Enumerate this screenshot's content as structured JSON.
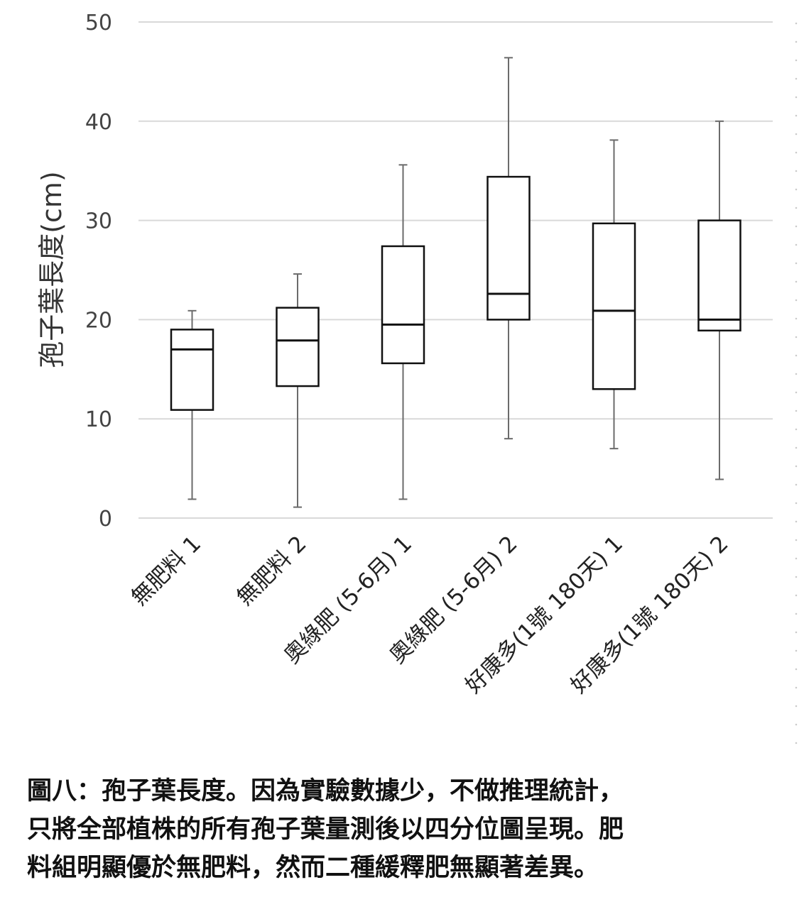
{
  "chart_data": {
    "type": "box",
    "ylabel": "孢子葉長度(cm)",
    "ylim": [
      0,
      50
    ],
    "yticks": [
      0,
      10,
      20,
      30,
      40,
      50
    ],
    "grid": true,
    "categories": [
      "無肥料 1",
      "無肥料 2",
      "奧綠肥 (5-6月) 1",
      "奧綠肥 (5-6月) 2",
      "好康多(1號 180天) 1",
      "好康多(1號 180天) 2"
    ],
    "boxes": [
      {
        "min": 1.9,
        "q1": 10.9,
        "median": 17.0,
        "q3": 19.0,
        "max": 20.9
      },
      {
        "min": 1.1,
        "q1": 13.3,
        "median": 17.9,
        "q3": 21.2,
        "max": 24.6
      },
      {
        "min": 1.9,
        "q1": 15.6,
        "median": 19.5,
        "q3": 27.4,
        "max": 35.6
      },
      {
        "min": 8.0,
        "q1": 20.0,
        "median": 22.6,
        "q3": 34.4,
        "max": 46.4
      },
      {
        "min": 7.0,
        "q1": 13.0,
        "median": 20.9,
        "q3": 29.7,
        "max": 38.1
      },
      {
        "min": 3.9,
        "q1": 18.9,
        "median": 20.0,
        "q3": 30.0,
        "max": 40.0
      }
    ]
  },
  "caption": {
    "line1": "圖八：孢子葉長度。因為實驗數據少，不做推理統計，",
    "line2": "只將全部植株的所有孢子葉量測後以四分位圖呈現。肥",
    "line3": "料組明顯優於無肥料，然而二種緩釋肥無顯著差異。"
  }
}
